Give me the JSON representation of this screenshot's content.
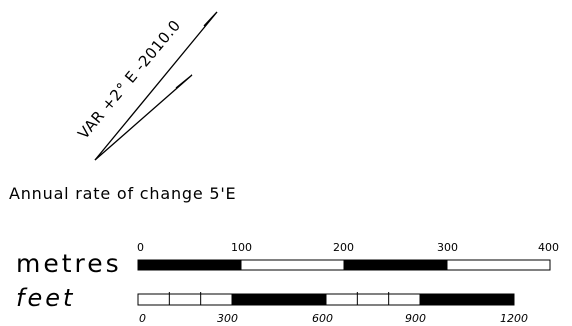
{
  "declination": {
    "label": "VAR +2° E -2010.0",
    "annual_change": "Annual rate of change 5'E"
  },
  "scale_bar": {
    "metres": {
      "unit_label": "metres",
      "ticks": [
        "0",
        "100",
        "200",
        "300",
        "400"
      ],
      "max_value": 400,
      "segment_size": 100,
      "filled_segments": [
        0,
        2
      ]
    },
    "feet": {
      "unit_label": "feet",
      "ticks": [
        "0",
        "300",
        "600",
        "900",
        "1200"
      ],
      "max_value": 1200,
      "segment_size": 300,
      "minor_division": 100,
      "filled_segments": [
        1,
        3
      ]
    }
  },
  "colors": {
    "ink": "#000000",
    "paper": "#ffffff"
  }
}
